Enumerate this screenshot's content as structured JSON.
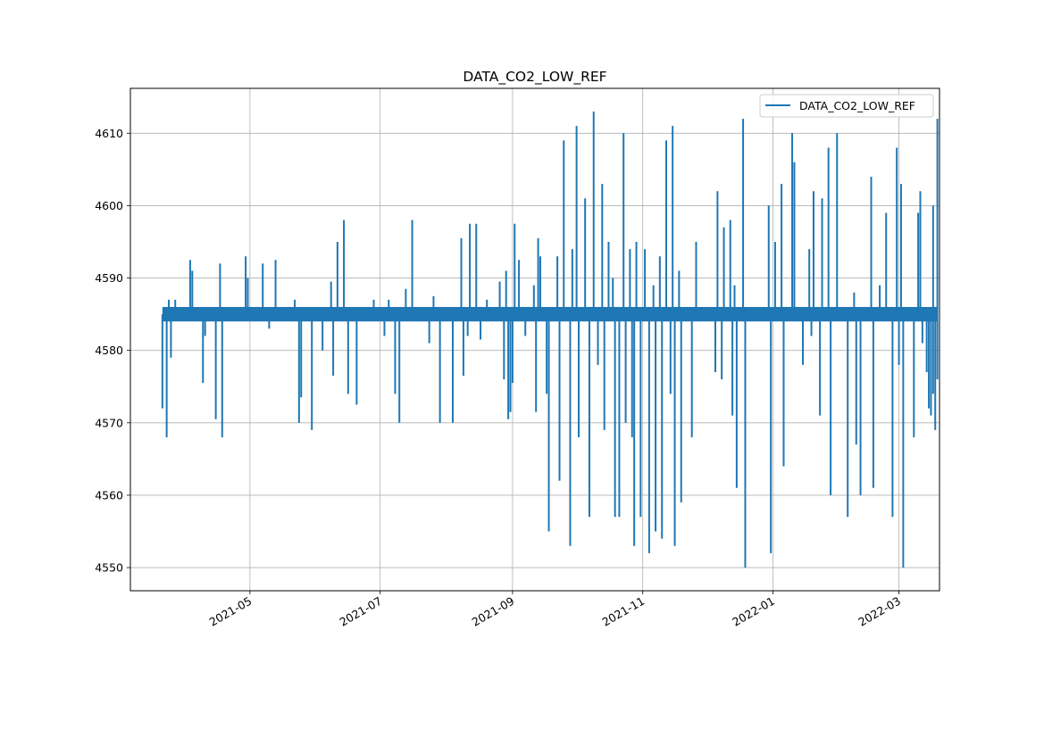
{
  "chart_data": {
    "type": "line",
    "title": "DATA_CO2_LOW_REF",
    "xlabel": "",
    "ylabel": "",
    "x_axis_type": "date",
    "xlim": [
      "2021-03-06",
      "2022-03-20"
    ],
    "ylim": [
      4546.8,
      4616.2
    ],
    "x_ticks": [
      "2021-05-01",
      "2021-07-01",
      "2021-09-01",
      "2021-11-01",
      "2022-01-01",
      "2022-03-01"
    ],
    "x_tick_labels": [
      "2021-05",
      "2021-07",
      "2021-09",
      "2021-11",
      "2022-01",
      "2022-03"
    ],
    "y_ticks": [
      4550,
      4560,
      4570,
      4580,
      4590,
      4600,
      4610
    ],
    "y_tick_labels": [
      "4550",
      "4560",
      "4570",
      "4580",
      "4590",
      "4600",
      "4610"
    ],
    "grid": true,
    "legend": "upper-right",
    "baseline_band": {
      "low": 4584,
      "high": 4586
    },
    "series": [
      {
        "name": "DATA_CO2_LOW_REF",
        "color": "#1f77b4",
        "points": [
          [
            "2021-03-21",
            4585
          ],
          [
            "2021-03-21",
            4572
          ],
          [
            "2021-03-22",
            4586
          ],
          [
            "2021-03-23",
            4568
          ],
          [
            "2021-03-24",
            4587
          ],
          [
            "2021-03-25",
            4579
          ],
          [
            "2021-03-27",
            4587
          ],
          [
            "2021-04-01",
            4585
          ],
          [
            "2021-04-03",
            4592.5
          ],
          [
            "2021-04-04",
            4591
          ],
          [
            "2021-04-09",
            4575.5
          ],
          [
            "2021-04-10",
            4582
          ],
          [
            "2021-04-15",
            4570.5
          ],
          [
            "2021-04-17",
            4592
          ],
          [
            "2021-04-18",
            4568
          ],
          [
            "2021-04-29",
            4593
          ],
          [
            "2021-04-30",
            4590
          ],
          [
            "2021-05-07",
            4592
          ],
          [
            "2021-05-10",
            4583
          ],
          [
            "2021-05-13",
            4592.5
          ],
          [
            "2021-05-22",
            4587
          ],
          [
            "2021-05-24",
            4570
          ],
          [
            "2021-05-25",
            4573.5
          ],
          [
            "2021-05-30",
            4569
          ],
          [
            "2021-06-04",
            4580
          ],
          [
            "2021-06-08",
            4589.5
          ],
          [
            "2021-06-09",
            4576.5
          ],
          [
            "2021-06-11",
            4595
          ],
          [
            "2021-06-14",
            4598
          ],
          [
            "2021-06-16",
            4574
          ],
          [
            "2021-06-20",
            4572.5
          ],
          [
            "2021-06-28",
            4587
          ],
          [
            "2021-07-03",
            4582
          ],
          [
            "2021-07-05",
            4587
          ],
          [
            "2021-07-08",
            4574
          ],
          [
            "2021-07-10",
            4570
          ],
          [
            "2021-07-13",
            4588.5
          ],
          [
            "2021-07-16",
            4598
          ],
          [
            "2021-07-18",
            4584
          ],
          [
            "2021-07-24",
            4581
          ],
          [
            "2021-07-26",
            4587.5
          ],
          [
            "2021-07-29",
            4570
          ],
          [
            "2021-08-04",
            4570
          ],
          [
            "2021-08-08",
            4595.5
          ],
          [
            "2021-08-09",
            4576.5
          ],
          [
            "2021-08-11",
            4582
          ],
          [
            "2021-08-12",
            4597.5
          ],
          [
            "2021-08-15",
            4597.5
          ],
          [
            "2021-08-17",
            4581.5
          ],
          [
            "2021-08-20",
            4587
          ],
          [
            "2021-08-26",
            4589.5
          ],
          [
            "2021-08-28",
            4576
          ],
          [
            "2021-08-29",
            4591
          ],
          [
            "2021-08-30",
            4570.5
          ],
          [
            "2021-08-31",
            4571.5
          ],
          [
            "2021-09-01",
            4575.5
          ],
          [
            "2021-09-02",
            4597.5
          ],
          [
            "2021-09-04",
            4592.5
          ],
          [
            "2021-09-07",
            4582
          ],
          [
            "2021-09-11",
            4589
          ],
          [
            "2021-09-12",
            4571.5
          ],
          [
            "2021-09-13",
            4595.5
          ],
          [
            "2021-09-14",
            4593
          ],
          [
            "2021-09-17",
            4574
          ],
          [
            "2021-09-18",
            4555
          ],
          [
            "2021-09-20",
            4585
          ],
          [
            "2021-09-22",
            4593
          ],
          [
            "2021-09-23",
            4562
          ],
          [
            "2021-09-25",
            4609
          ],
          [
            "2021-09-28",
            4553
          ],
          [
            "2021-09-29",
            4594
          ],
          [
            "2021-10-01",
            4611
          ],
          [
            "2021-10-02",
            4568
          ],
          [
            "2021-10-05",
            4601
          ],
          [
            "2021-10-07",
            4557
          ],
          [
            "2021-10-09",
            4613
          ],
          [
            "2021-10-11",
            4578
          ],
          [
            "2021-10-13",
            4603
          ],
          [
            "2021-10-14",
            4569
          ],
          [
            "2021-10-16",
            4595
          ],
          [
            "2021-10-18",
            4590
          ],
          [
            "2021-10-19",
            4557
          ],
          [
            "2021-10-21",
            4557
          ],
          [
            "2021-10-23",
            4610
          ],
          [
            "2021-10-24",
            4570
          ],
          [
            "2021-10-26",
            4594
          ],
          [
            "2021-10-27",
            4568
          ],
          [
            "2021-10-28",
            4553
          ],
          [
            "2021-10-29",
            4595
          ],
          [
            "2021-10-31",
            4557
          ],
          [
            "2021-11-02",
            4594
          ],
          [
            "2021-11-04",
            4552
          ],
          [
            "2021-11-06",
            4589
          ],
          [
            "2021-11-07",
            4555
          ],
          [
            "2021-11-09",
            4593
          ],
          [
            "2021-11-10",
            4554
          ],
          [
            "2021-11-12",
            4609
          ],
          [
            "2021-11-14",
            4574
          ],
          [
            "2021-11-15",
            4611
          ],
          [
            "2021-11-16",
            4553
          ],
          [
            "2021-11-18",
            4591
          ],
          [
            "2021-11-19",
            4559
          ],
          [
            "2021-11-24",
            4568
          ],
          [
            "2021-11-26",
            4595
          ],
          [
            "2021-12-05",
            4577
          ],
          [
            "2021-12-06",
            4602
          ],
          [
            "2021-12-08",
            4576
          ],
          [
            "2021-12-09",
            4597
          ],
          [
            "2021-12-12",
            4598
          ],
          [
            "2021-12-13",
            4571
          ],
          [
            "2021-12-14",
            4589
          ],
          [
            "2021-12-15",
            4561
          ],
          [
            "2021-12-18",
            4612
          ],
          [
            "2021-12-19",
            4550
          ],
          [
            "2021-12-30",
            4600
          ],
          [
            "2021-12-31",
            4552
          ],
          [
            "2022-01-02",
            4595
          ],
          [
            "2022-01-05",
            4603
          ],
          [
            "2022-01-06",
            4564
          ],
          [
            "2022-01-10",
            4610
          ],
          [
            "2022-01-11",
            4606
          ],
          [
            "2022-01-15",
            4578
          ],
          [
            "2022-01-18",
            4594
          ],
          [
            "2022-01-19",
            4582
          ],
          [
            "2022-01-20",
            4602
          ],
          [
            "2022-01-23",
            4571
          ],
          [
            "2022-01-24",
            4601
          ],
          [
            "2022-01-27",
            4608
          ],
          [
            "2022-01-28",
            4560
          ],
          [
            "2022-01-31",
            4610
          ],
          [
            "2022-02-05",
            4557
          ],
          [
            "2022-02-08",
            4588
          ],
          [
            "2022-02-09",
            4567
          ],
          [
            "2022-02-11",
            4560
          ],
          [
            "2022-02-16",
            4604
          ],
          [
            "2022-02-17",
            4561
          ],
          [
            "2022-02-20",
            4589
          ],
          [
            "2022-02-23",
            4599
          ],
          [
            "2022-02-26",
            4557
          ],
          [
            "2022-02-28",
            4608
          ],
          [
            "2022-03-01",
            4578
          ],
          [
            "2022-03-02",
            4603
          ],
          [
            "2022-03-03",
            4550
          ],
          [
            "2022-03-08",
            4568
          ],
          [
            "2022-03-10",
            4599
          ],
          [
            "2022-03-11",
            4602
          ],
          [
            "2022-03-12",
            4581
          ],
          [
            "2022-03-14",
            4577
          ],
          [
            "2022-03-15",
            4572
          ],
          [
            "2022-03-16",
            4571
          ],
          [
            "2022-03-17",
            4600
          ],
          [
            "2022-03-17",
            4574
          ],
          [
            "2022-03-18",
            4569
          ],
          [
            "2022-03-19",
            4612
          ],
          [
            "2022-03-19",
            4576
          ]
        ]
      }
    ]
  }
}
